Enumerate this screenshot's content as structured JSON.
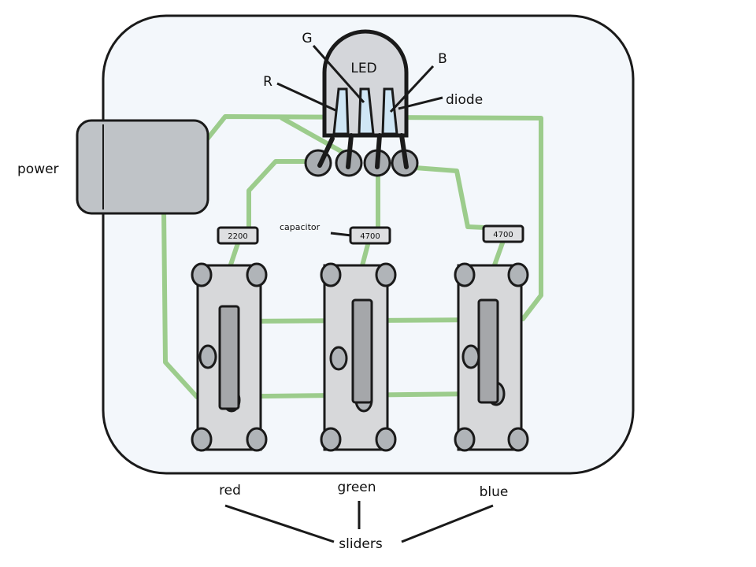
{
  "colors": {
    "board_fill": "#f3f7fb",
    "outline": "#1a1a1a",
    "wire": "#9ccc8c",
    "power_fill": "#bfc3c7",
    "led_fill": "#d4d6da",
    "led_window": "#cfe6f5",
    "pin_fill": "#a9adb1",
    "slider_body": "#d7d8da",
    "slider_knob": "#a5a7aa",
    "slider_mount": "#b0b4b8",
    "resistor_fill": "#dedfe1",
    "resistor_badge": "#c5c8cb"
  },
  "labels": {
    "power": "power",
    "led": "LED",
    "red_pin": "R",
    "green_pin": "G",
    "blue_pin": "B",
    "diode": "diode",
    "capacitor": "capacitor",
    "sliders": "sliders"
  },
  "resistors": [
    {
      "value": "2200"
    },
    {
      "value": "4700"
    },
    {
      "value": "4700"
    }
  ],
  "sliders": [
    {
      "name": "red"
    },
    {
      "name": "green"
    },
    {
      "name": "blue"
    }
  ]
}
